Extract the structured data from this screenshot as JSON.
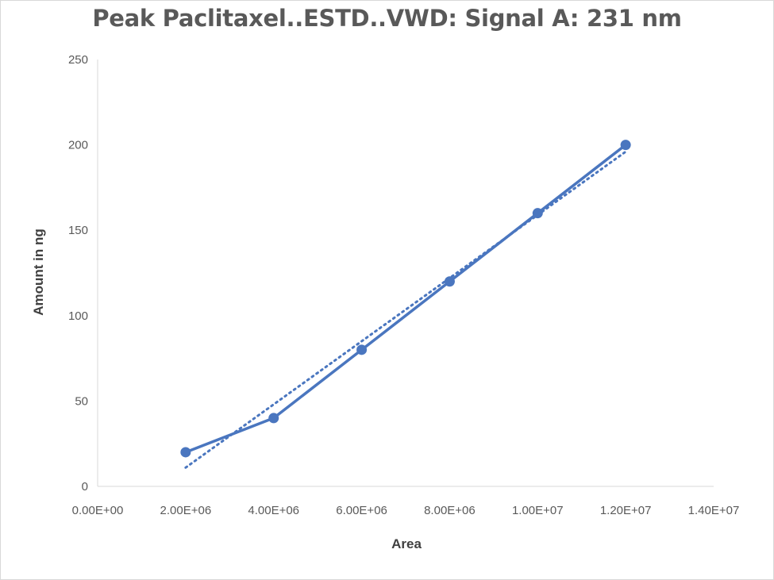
{
  "chart_data": {
    "type": "scatter",
    "title": "Peak Paclitaxel..ESTD..VWD: Signal A: 231 nm",
    "xlabel": "Area",
    "ylabel": "Amount in ng",
    "xlim": [
      0,
      14000000
    ],
    "ylim": [
      0,
      250
    ],
    "x_ticks": [
      "0.00E+00",
      "2.00E+06",
      "4.00E+06",
      "6.00E+06",
      "8.00E+06",
      "1.00E+07",
      "1.20E+07",
      "1.40E+07"
    ],
    "y_ticks": [
      "0",
      "50",
      "100",
      "150",
      "200",
      "250"
    ],
    "grid": false,
    "series": [
      {
        "style": "line-with-markers",
        "color": "#4a76bf",
        "x": [
          2000000,
          4000000,
          6000000,
          8000000,
          10000000,
          12000000
        ],
        "y": [
          20,
          40,
          80,
          120,
          160,
          200
        ]
      }
    ],
    "trendline": {
      "type": "linear",
      "style": "dotted",
      "color": "#4a76bf",
      "x": [
        2000000,
        12000000
      ],
      "y": [
        11,
        196
      ]
    }
  }
}
